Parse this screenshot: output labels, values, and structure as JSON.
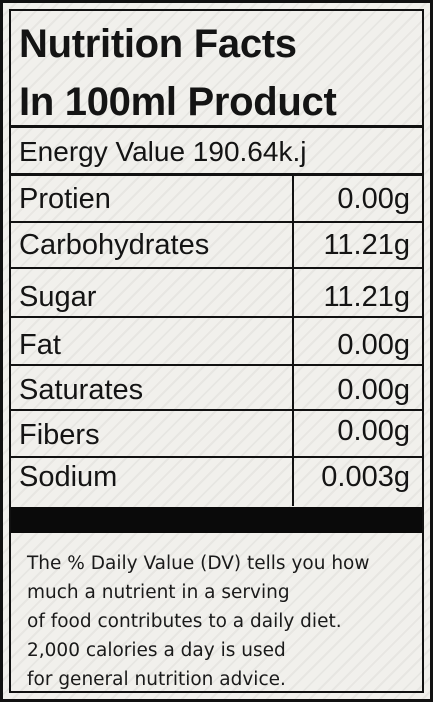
{
  "title_line1": "Nutrition Facts",
  "title_line2": "In 100ml Product",
  "energy": "Energy Value 190.64k.j",
  "rows": [
    {
      "name": "Protien",
      "value": "0.00g"
    },
    {
      "name": "Carbohydrates",
      "value": "11.21g"
    },
    {
      "name": "Sugar",
      "value": "11.21g"
    },
    {
      "name": "Fat",
      "value": "0.00g"
    },
    {
      "name": "Saturates",
      "value": "0.00g"
    },
    {
      "name": "Fibers",
      "value": "0.00g"
    },
    {
      "name": "Sodium",
      "value": "0.003g"
    }
  ],
  "footer_lines": [
    "The % Daily Value (DV) tells you how",
    "much a nutrient in a serving",
    "of food contributes to a daily diet.",
    "2,000 calories a day is used",
    "for general nutrition advice."
  ]
}
